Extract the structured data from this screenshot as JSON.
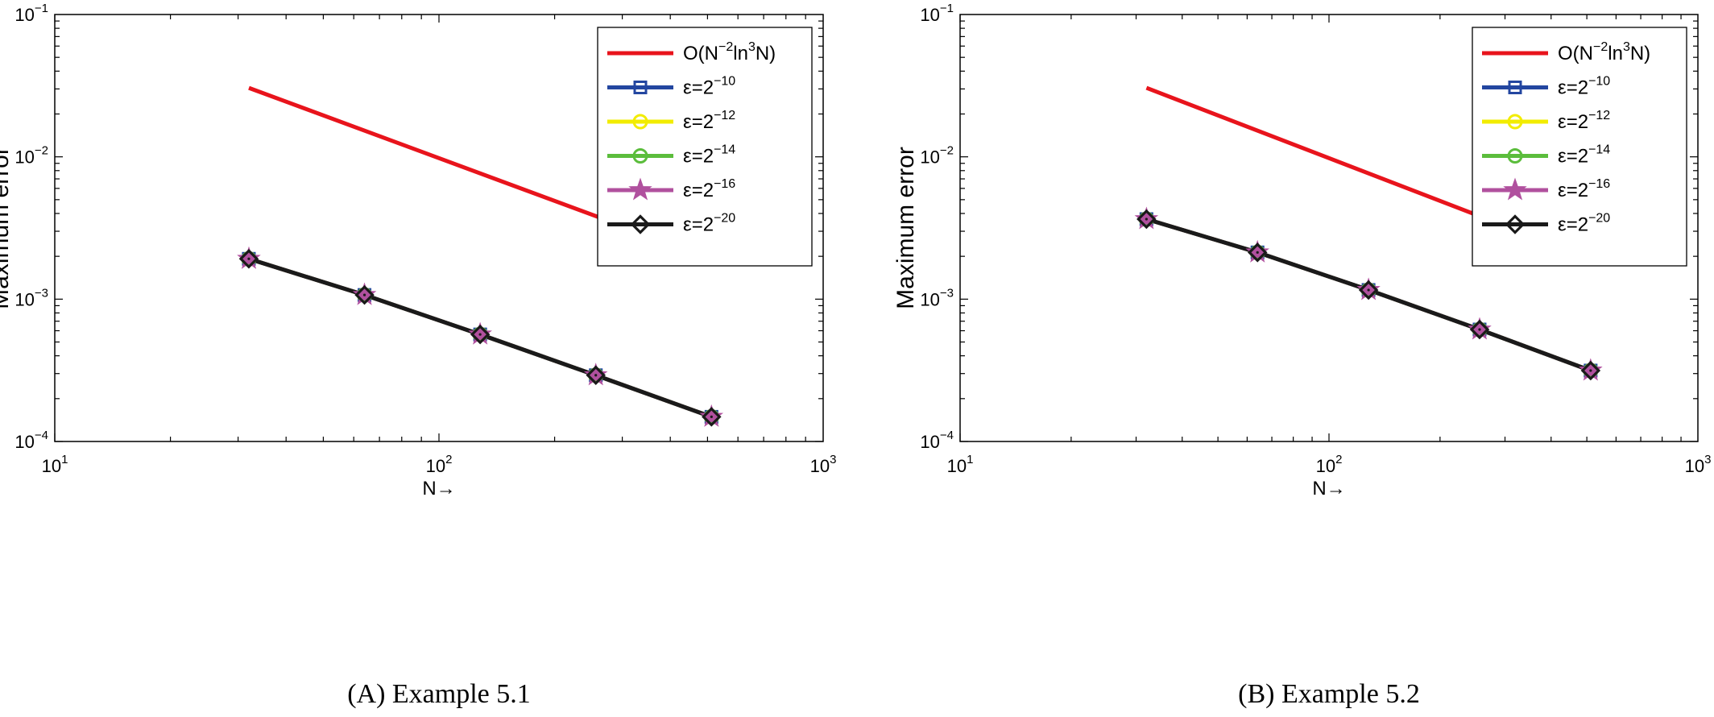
{
  "chart_data": [
    {
      "type": "line",
      "caption": "(A) Example 5.1",
      "xlabel": "N→",
      "ylabel": "Maximum error",
      "xscale": "log",
      "yscale": "log",
      "xlim": [
        10,
        1000
      ],
      "ylim": [
        0.0001,
        0.1
      ],
      "xticks": [
        {
          "base": "10",
          "exp": "1"
        },
        {
          "base": "10",
          "exp": "2"
        },
        {
          "base": "10",
          "exp": "3"
        }
      ],
      "yticks": [
        {
          "base": "10",
          "exp": "−4"
        },
        {
          "base": "10",
          "exp": "−3"
        },
        {
          "base": "10",
          "exp": "−2"
        },
        {
          "base": "10",
          "exp": "−1"
        }
      ],
      "grid": false,
      "legend_position": "top-right",
      "x": [
        32,
        64,
        128,
        256,
        512
      ],
      "series": [
        {
          "name": "O(N⁻²ln³N)",
          "legend": {
            "base": "O(N",
            "exp1": "−2",
            "mid": "ln",
            "exp2": "3",
            "tail": "N)"
          },
          "color": "#e8141c",
          "marker": "none",
          "x": [
            32,
            512
          ],
          "values": [
            0.0305,
            0.00192
          ]
        },
        {
          "name": "ε=2⁻¹⁰",
          "legend": {
            "base": "ε=2",
            "exp1": "−10"
          },
          "color": "#2346a0",
          "marker": "square",
          "values": [
            0.00192,
            0.00107,
            0.000565,
            0.000292,
            0.000149
          ]
        },
        {
          "name": "ε=2⁻¹²",
          "legend": {
            "base": "ε=2",
            "exp1": "−12"
          },
          "color": "#f2ec00",
          "marker": "circle",
          "values": [
            0.00192,
            0.00107,
            0.000565,
            0.000292,
            0.000149
          ]
        },
        {
          "name": "ε=2⁻¹⁴",
          "legend": {
            "base": "ε=2",
            "exp1": "−14"
          },
          "color": "#5bbd3c",
          "marker": "circle",
          "values": [
            0.00192,
            0.00107,
            0.000565,
            0.000292,
            0.000149
          ]
        },
        {
          "name": "ε=2⁻¹⁶",
          "legend": {
            "base": "ε=2",
            "exp1": "−16"
          },
          "color": "#b0509e",
          "marker": "star",
          "values": [
            0.00192,
            0.00107,
            0.000565,
            0.000292,
            0.000149
          ]
        },
        {
          "name": "ε=2⁻²⁰",
          "legend": {
            "base": "ε=2",
            "exp1": "−20"
          },
          "color": "#1a1a1a",
          "marker": "diamond",
          "values": [
            0.00192,
            0.00107,
            0.000565,
            0.000292,
            0.000149
          ]
        }
      ]
    },
    {
      "type": "line",
      "caption": "(B) Example 5.2",
      "xlabel": "N→",
      "ylabel": "Maximum error",
      "xscale": "log",
      "yscale": "log",
      "xlim": [
        10,
        1000
      ],
      "ylim": [
        0.0001,
        0.1
      ],
      "xticks": [
        {
          "base": "10",
          "exp": "1"
        },
        {
          "base": "10",
          "exp": "2"
        },
        {
          "base": "10",
          "exp": "3"
        }
      ],
      "yticks": [
        {
          "base": "10",
          "exp": "−4"
        },
        {
          "base": "10",
          "exp": "−3"
        },
        {
          "base": "10",
          "exp": "−2"
        },
        {
          "base": "10",
          "exp": "−1"
        }
      ],
      "grid": false,
      "legend_position": "top-right",
      "x": [
        32,
        64,
        128,
        256,
        512
      ],
      "series": [
        {
          "name": "O(N⁻²ln³N)",
          "legend": {
            "base": "O(N",
            "exp1": "−2",
            "mid": "ln",
            "exp2": "3",
            "tail": "N)"
          },
          "color": "#e8141c",
          "marker": "none",
          "x": [
            32,
            512
          ],
          "values": [
            0.0305,
            0.00192
          ]
        },
        {
          "name": "ε=2⁻¹⁰",
          "legend": {
            "base": "ε=2",
            "exp1": "−10"
          },
          "color": "#2346a0",
          "marker": "square",
          "values": [
            0.00365,
            0.00213,
            0.00116,
            0.000612,
            0.000315
          ]
        },
        {
          "name": "ε=2⁻¹²",
          "legend": {
            "base": "ε=2",
            "exp1": "−12"
          },
          "color": "#f2ec00",
          "marker": "circle",
          "values": [
            0.00365,
            0.00213,
            0.00116,
            0.000612,
            0.000315
          ]
        },
        {
          "name": "ε=2⁻¹⁴",
          "legend": {
            "base": "ε=2",
            "exp1": "−14"
          },
          "color": "#5bbd3c",
          "marker": "circle",
          "values": [
            0.00365,
            0.00213,
            0.00116,
            0.000612,
            0.000315
          ]
        },
        {
          "name": "ε=2⁻¹⁶",
          "legend": {
            "base": "ε=2",
            "exp1": "−16"
          },
          "color": "#b0509e",
          "marker": "star",
          "values": [
            0.00365,
            0.00213,
            0.00116,
            0.000612,
            0.000315
          ]
        },
        {
          "name": "ε=2⁻²⁰",
          "legend": {
            "base": "ε=2",
            "exp1": "−20"
          },
          "color": "#1a1a1a",
          "marker": "diamond",
          "values": [
            0.00365,
            0.00213,
            0.00116,
            0.000612,
            0.000315
          ]
        }
      ]
    }
  ]
}
